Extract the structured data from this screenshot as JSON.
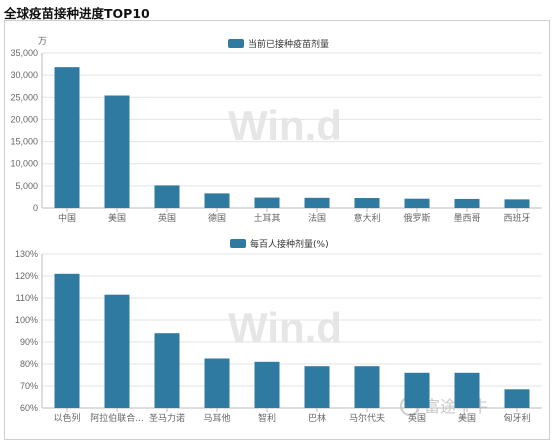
{
  "page": {
    "title": "全球疫苗接种进度TOP10"
  },
  "chart_data": [
    {
      "type": "bar",
      "unit_label": "万",
      "legend": "当前已接种疫苗剂量",
      "categories": [
        "中国",
        "美国",
        "英国",
        "德国",
        "土耳其",
        "法国",
        "意大利",
        "俄罗斯",
        "墨西哥",
        "西班牙"
      ],
      "series": [
        {
          "name": "当前已接种疫苗剂量",
          "values": [
            31800,
            25400,
            5100,
            3300,
            2350,
            2300,
            2250,
            2100,
            2050,
            1950
          ]
        }
      ],
      "yticks": [
        "0",
        "5,000",
        "10,000",
        "15,000",
        "20,000",
        "25,000",
        "30,000",
        "35,000"
      ],
      "ylim": [
        0,
        35000
      ],
      "grid": true,
      "color": "#2f7aa1"
    },
    {
      "type": "bar",
      "legend": "每百人接种剂量(%)",
      "categories": [
        "以色列",
        "阿拉伯联合...",
        "圣马力诺",
        "马耳他",
        "智利",
        "巴林",
        "马尔代夫",
        "英国",
        "美国",
        "匈牙利"
      ],
      "series": [
        {
          "name": "每百人接种剂量(%)",
          "values": [
            121,
            111.5,
            94,
            82.5,
            81,
            79,
            79,
            76,
            76,
            68.5
          ]
        }
      ],
      "yticks": [
        "60%",
        "70%",
        "80%",
        "90%",
        "100%",
        "110%",
        "120%",
        "130%"
      ],
      "ylim": [
        60,
        130
      ],
      "grid": true,
      "color": "#2f7aa1"
    }
  ],
  "watermark": "Win.d",
  "logo": "富途牛牛"
}
